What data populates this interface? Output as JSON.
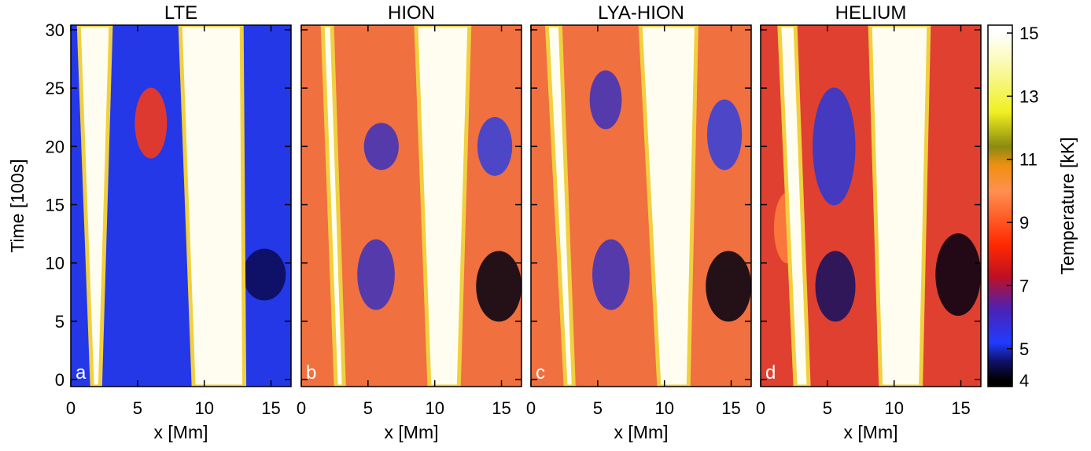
{
  "chart_data": [
    {
      "type": "heatmap",
      "title": "LTE",
      "panel_label": "a",
      "x_label": "x [Mm]",
      "y_label": "Time [100s]",
      "xlim": [
        0,
        16.5
      ],
      "xticks": [
        0,
        5,
        10,
        15
      ],
      "ylim": [
        -0.6,
        30.4
      ],
      "yticks": [
        0,
        5,
        10,
        15,
        20,
        25,
        30
      ],
      "ytick_labels": true
    },
    {
      "type": "heatmap",
      "title": "HION",
      "panel_label": "b",
      "x_label": "x [Mm]",
      "xlim": [
        0,
        16.5
      ],
      "xticks": [
        0,
        5,
        10,
        15
      ],
      "ylim": [
        -0.6,
        30.4
      ],
      "yticks": [
        0,
        5,
        10,
        15,
        20,
        25,
        30
      ],
      "ytick_labels": false
    },
    {
      "type": "heatmap",
      "title": "LYA-HION",
      "panel_label": "c",
      "x_label": "x [Mm]",
      "xlim": [
        0,
        16.5
      ],
      "xticks": [
        0,
        5,
        10,
        15
      ],
      "ylim": [
        -0.6,
        30.4
      ],
      "yticks": [
        0,
        5,
        10,
        15,
        20,
        25,
        30
      ],
      "ytick_labels": false
    },
    {
      "type": "heatmap",
      "title": "HELIUM",
      "panel_label": "d",
      "x_label": "x [Mm]",
      "xlim": [
        0,
        16.5
      ],
      "xticks": [
        0,
        5,
        10,
        15
      ],
      "ylim": [
        -0.6,
        30.4
      ],
      "yticks": [
        0,
        5,
        10,
        15,
        20,
        25,
        30
      ],
      "ytick_labels": false
    }
  ],
  "colorbar": {
    "label": "Temperature [kK]",
    "lim": [
      3.8,
      15.25
    ],
    "ticks": [
      4,
      5,
      7,
      9,
      11,
      13,
      15
    ],
    "colormap": [
      {
        "value": 4,
        "color": "#000000"
      },
      {
        "value": 4.6,
        "color": "#10106a"
      },
      {
        "value": 5.2,
        "color": "#1f3cff"
      },
      {
        "value": 6.3,
        "color": "#5020b0"
      },
      {
        "value": 7.3,
        "color": "#c01020"
      },
      {
        "value": 8.3,
        "color": "#ff2a00"
      },
      {
        "value": 10,
        "color": "#ff9050"
      },
      {
        "value": 10.8,
        "color": "#f09010"
      },
      {
        "value": 11.4,
        "color": "#8a8a10"
      },
      {
        "value": 12.5,
        "color": "#f0f020"
      },
      {
        "value": 14,
        "color": "#fafab0"
      },
      {
        "value": 15,
        "color": "#ffffff"
      }
    ]
  }
}
